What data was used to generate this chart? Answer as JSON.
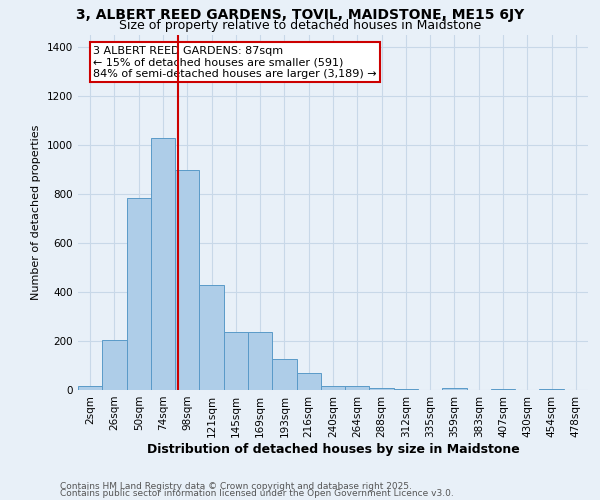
{
  "title1": "3, ALBERT REED GARDENS, TOVIL, MAIDSTONE, ME15 6JY",
  "title2": "Size of property relative to detached houses in Maidstone",
  "xlabel": "Distribution of detached houses by size in Maidstone",
  "ylabel": "Number of detached properties",
  "bar_labels": [
    "2sqm",
    "26sqm",
    "50sqm",
    "74sqm",
    "98sqm",
    "121sqm",
    "145sqm",
    "169sqm",
    "193sqm",
    "216sqm",
    "240sqm",
    "264sqm",
    "288sqm",
    "312sqm",
    "335sqm",
    "359sqm",
    "383sqm",
    "407sqm",
    "430sqm",
    "454sqm",
    "478sqm"
  ],
  "bar_values": [
    15,
    205,
    785,
    1030,
    900,
    430,
    235,
    235,
    125,
    70,
    15,
    15,
    10,
    3,
    0,
    10,
    0,
    5,
    0,
    5,
    0
  ],
  "bar_color": "#aecde8",
  "bar_edge_color": "#5a9ac8",
  "vline_x_index": 3.62,
  "vline_color": "#cc0000",
  "annotation_text": "3 ALBERT REED GARDENS: 87sqm\n← 15% of detached houses are smaller (591)\n84% of semi-detached houses are larger (3,189) →",
  "annotation_box_color": "#cc0000",
  "annotation_bg_color": "#ffffff",
  "ylim": [
    0,
    1450
  ],
  "yticks": [
    0,
    200,
    400,
    600,
    800,
    1000,
    1200,
    1400
  ],
  "grid_color": "#c8d8e8",
  "bg_color": "#e8f0f8",
  "footer1": "Contains HM Land Registry data © Crown copyright and database right 2025.",
  "footer2": "Contains public sector information licensed under the Open Government Licence v3.0.",
  "title_fontsize": 10,
  "subtitle_fontsize": 9,
  "xlabel_fontsize": 9,
  "ylabel_fontsize": 8,
  "tick_fontsize": 7.5,
  "annotation_fontsize": 8,
  "footer_fontsize": 6.5
}
